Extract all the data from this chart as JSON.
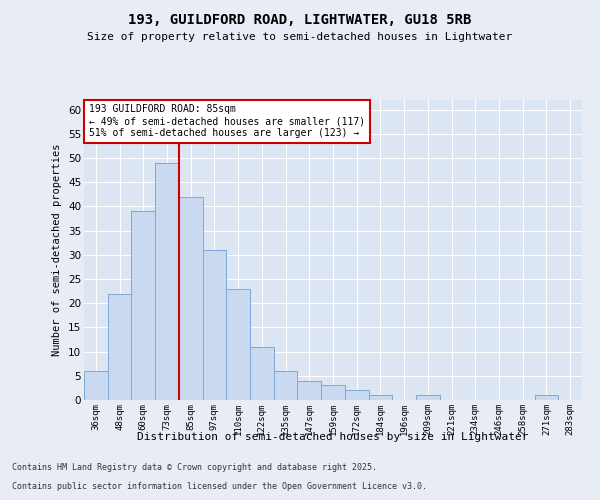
{
  "title1": "193, GUILDFORD ROAD, LIGHTWATER, GU18 5RB",
  "title2": "Size of property relative to semi-detached houses in Lightwater",
  "xlabel": "Distribution of semi-detached houses by size in Lightwater",
  "ylabel": "Number of semi-detached properties",
  "categories": [
    "36sqm",
    "48sqm",
    "60sqm",
    "73sqm",
    "85sqm",
    "97sqm",
    "110sqm",
    "122sqm",
    "135sqm",
    "147sqm",
    "159sqm",
    "172sqm",
    "184sqm",
    "196sqm",
    "209sqm",
    "221sqm",
    "234sqm",
    "246sqm",
    "258sqm",
    "271sqm",
    "283sqm"
  ],
  "values": [
    6,
    22,
    39,
    49,
    42,
    31,
    23,
    11,
    6,
    4,
    3,
    2,
    1,
    0,
    1,
    0,
    0,
    0,
    0,
    1,
    0
  ],
  "highlight_index": 4,
  "bar_color": "#c9d9f0",
  "bar_edge_color": "#7da8d8",
  "highlight_line_color": "#cc0000",
  "annotation_box_color": "#cc0000",
  "annotation_text": "193 GUILDFORD ROAD: 85sqm\n← 49% of semi-detached houses are smaller (117)\n51% of semi-detached houses are larger (123) →",
  "footer1": "Contains HM Land Registry data © Crown copyright and database right 2025.",
  "footer2": "Contains public sector information licensed under the Open Government Licence v3.0.",
  "ylim": [
    0,
    62
  ],
  "yticks": [
    0,
    5,
    10,
    15,
    20,
    25,
    30,
    35,
    40,
    45,
    50,
    55,
    60
  ],
  "bg_color": "#e8edf5",
  "plot_bg_color": "#dce5f2"
}
